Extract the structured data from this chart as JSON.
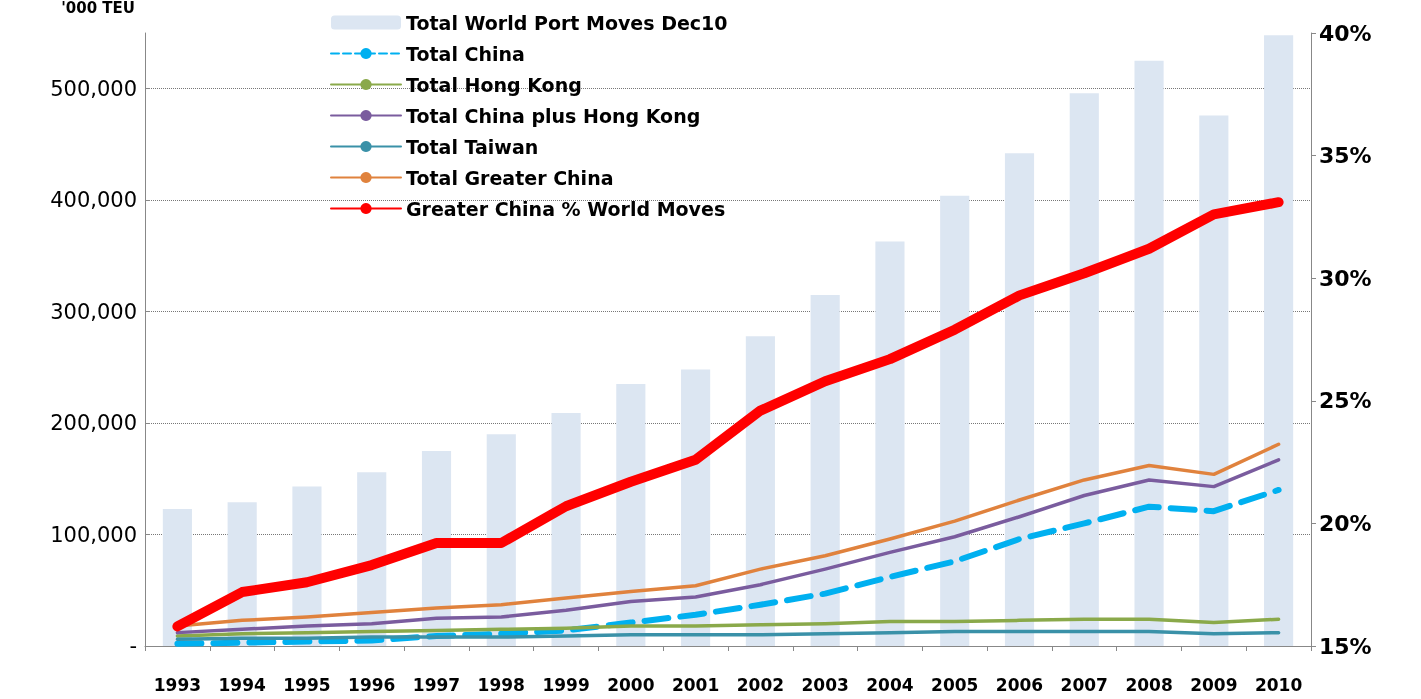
{
  "chart_data": {
    "type": "line",
    "ylabel": "'000 TEU",
    "categories": [
      "1993",
      "1994",
      "1995",
      "1996",
      "1997",
      "1998",
      "1999",
      "2000",
      "2001",
      "2002",
      "2003",
      "2004",
      "2005",
      "2006",
      "2007",
      "2008",
      "2009",
      "2010"
    ],
    "series": [
      {
        "name": "Total World Port Moves Dec10",
        "type": "bar",
        "color": "#dce6f2",
        "values": [
          123000,
          129000,
          143000,
          156000,
          175000,
          190000,
          209000,
          235000,
          248000,
          278000,
          315000,
          363000,
          404000,
          442000,
          496000,
          525000,
          476000,
          548000
        ]
      },
      {
        "name": "Total China",
        "color": "#00b0f0",
        "line_style": "dashed",
        "values": [
          2000,
          3000,
          4000,
          5000,
          9000,
          11000,
          14000,
          21000,
          28000,
          37000,
          47000,
          62000,
          76000,
          96000,
          110000,
          125000,
          121000,
          140000
        ]
      },
      {
        "name": "Total Hong Kong",
        "color": "#8aa94a",
        "values": [
          9000,
          11000,
          12000,
          13000,
          14000,
          15000,
          16000,
          18000,
          18000,
          19000,
          20000,
          22000,
          22000,
          23000,
          24000,
          24000,
          21000,
          24000
        ]
      },
      {
        "name": "Total China plus Hong Kong",
        "color": "#7a5c9e",
        "values": [
          12000,
          15000,
          18000,
          20000,
          25000,
          26000,
          32000,
          40000,
          44000,
          55000,
          69000,
          84000,
          98000,
          116000,
          135000,
          149000,
          143000,
          167000
        ]
      },
      {
        "name": "Total Taiwan",
        "color": "#3a91a8",
        "values": [
          6000,
          7000,
          7000,
          8000,
          8000,
          8000,
          9000,
          10000,
          10000,
          10000,
          11000,
          12000,
          13000,
          13000,
          13000,
          13000,
          11000,
          12000
        ]
      },
      {
        "name": "Total Greater China",
        "color": "#e0823d",
        "values": [
          18000,
          23000,
          26000,
          30000,
          34000,
          37000,
          43000,
          49000,
          54000,
          69000,
          81000,
          96000,
          112000,
          131000,
          149000,
          162000,
          154000,
          181000
        ]
      },
      {
        "name": "Greater China % World Moves",
        "color": "#ff0000",
        "axis": "y2",
        "values": [
          15.8,
          17.2,
          17.6,
          18.3,
          19.2,
          19.2,
          20.7,
          21.7,
          22.6,
          24.6,
          25.8,
          26.7,
          27.9,
          29.3,
          30.2,
          31.2,
          32.6,
          33.1
        ]
      }
    ],
    "ylim": [
      0,
      550000
    ],
    "yticks": [
      {
        "value": 0,
        "label": "-"
      },
      {
        "value": 100000,
        "label": "100,000"
      },
      {
        "value": 200000,
        "label": "200,000"
      },
      {
        "value": 300000,
        "label": "300,000"
      },
      {
        "value": 400000,
        "label": "400,000"
      },
      {
        "value": 500000,
        "label": "500,000"
      }
    ],
    "y2lim": [
      15,
      40
    ],
    "y2ticks": [
      {
        "value": 15,
        "label": "15%"
      },
      {
        "value": 20,
        "label": "20%"
      },
      {
        "value": 25,
        "label": "25%"
      },
      {
        "value": 30,
        "label": "30%"
      },
      {
        "value": 35,
        "label": "35%"
      },
      {
        "value": 40,
        "label": "40%"
      }
    ],
    "grid": "y",
    "legend": "top left",
    "marker": "none",
    "line_style": "solid"
  }
}
